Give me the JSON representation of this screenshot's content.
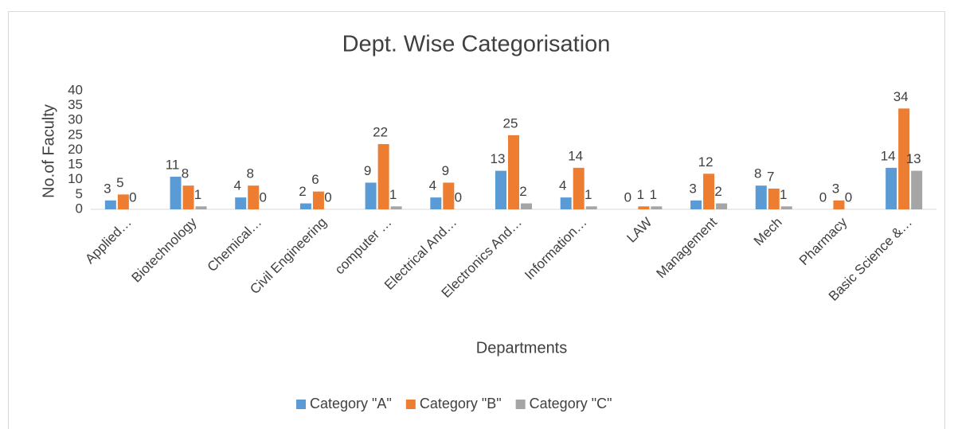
{
  "chart_data": {
    "type": "bar",
    "title": "Dept. Wise Categorisation",
    "x_label": "Departments",
    "y_label": "No.of Faculty",
    "categories": [
      "Applied…",
      "Biotechnology",
      "Chemical…",
      "Civil Engineering",
      "computer …",
      "Electrical And…",
      "Electronics And…",
      "Information…",
      "LAW",
      "Management",
      "Mech",
      "Pharmacy",
      "Basic Science &…"
    ],
    "series": [
      {
        "name": "Category \"A\"",
        "color": "#5b9bd5",
        "values": [
          3,
          11,
          4,
          2,
          9,
          4,
          13,
          4,
          0,
          3,
          8,
          0,
          14
        ]
      },
      {
        "name": "Category \"B\"",
        "color": "#ed7d31",
        "values": [
          5,
          8,
          8,
          6,
          22,
          9,
          25,
          14,
          1,
          12,
          7,
          3,
          34
        ]
      },
      {
        "name": "Category \"C\"",
        "color": "#a5a5a5",
        "values": [
          0,
          1,
          0,
          0,
          1,
          0,
          2,
          1,
          1,
          2,
          1,
          0,
          13
        ]
      }
    ],
    "ylim": [
      0,
      40
    ],
    "yticks": [
      0,
      5,
      10,
      15,
      20,
      25,
      30,
      35,
      40
    ],
    "grid": false,
    "legend": "bottom"
  }
}
